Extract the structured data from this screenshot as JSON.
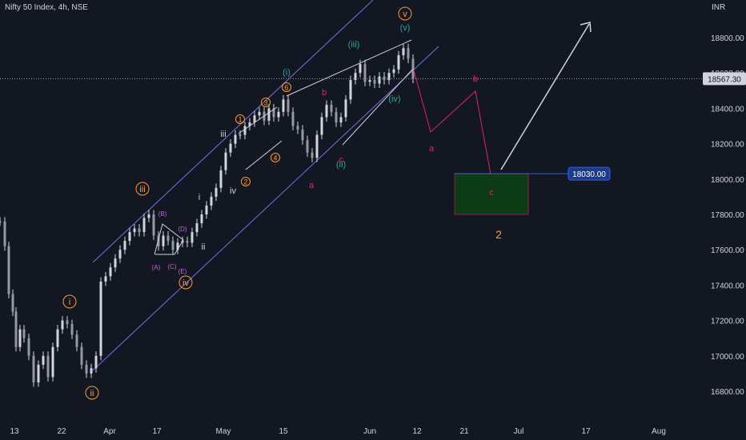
{
  "header": {
    "symbol": "Nifty 50 Index, 4h, NSE",
    "currency": "INR"
  },
  "chart_data": {
    "type": "candlestick",
    "title": "Nifty 50 Index, 4h, NSE",
    "ylim": [
      16700,
      19100
    ],
    "y_ticks": [
      16800,
      17000,
      17200,
      17400,
      17600,
      17800,
      18000,
      18200,
      18400,
      18600,
      18800
    ],
    "x_ticks": [
      "13",
      "22",
      "Apr",
      "17",
      "May",
      "15",
      "Jun",
      "12",
      "21",
      "Jul",
      "17",
      "Aug"
    ],
    "last_price": "18567.30",
    "target_level": "18030.00",
    "colors": {
      "up": "#d1d4dc",
      "down": "#d1d4dc",
      "channel": "#7e6ee6",
      "projection": "#e0245e",
      "box_fill": "#0d3b16",
      "box_border": "#e0245e",
      "target": "#2962ff",
      "arrow": "#d1d4dc",
      "orange": "#ff9b2d",
      "teal": "#26a69a",
      "magenta": "#c764d6",
      "white": "#d1d4dc"
    },
    "wave_labels": [
      {
        "text": "i",
        "style": "orange-circle"
      },
      {
        "text": "ii",
        "style": "orange-circle"
      },
      {
        "text": "iii",
        "style": "orange-circle"
      },
      {
        "text": "iv",
        "style": "orange-circle"
      },
      {
        "text": "v",
        "style": "orange-circle"
      },
      {
        "text": "(i)",
        "style": "teal"
      },
      {
        "text": "(ii)",
        "style": "teal"
      },
      {
        "text": "(iii)",
        "style": "teal"
      },
      {
        "text": "(iv)",
        "style": "teal"
      },
      {
        "text": "(v)",
        "style": "teal"
      },
      {
        "text": "i",
        "style": "white"
      },
      {
        "text": "ii",
        "style": "white"
      },
      {
        "text": "iii",
        "style": "white"
      },
      {
        "text": "iv",
        "style": "white"
      },
      {
        "text": "1",
        "style": "orange-small"
      },
      {
        "text": "2",
        "style": "orange-small"
      },
      {
        "text": "3",
        "style": "orange-small"
      },
      {
        "text": "4",
        "style": "orange-small"
      },
      {
        "text": "6",
        "style": "orange-small"
      },
      {
        "text": "(A)",
        "style": "magenta"
      },
      {
        "text": "(B)",
        "style": "magenta"
      },
      {
        "text": "(C)",
        "style": "magenta"
      },
      {
        "text": "(D)",
        "style": "magenta"
      },
      {
        "text": "(E)",
        "style": "magenta"
      },
      {
        "text": "a",
        "style": "red"
      },
      {
        "text": "b",
        "style": "red"
      },
      {
        "text": "c",
        "style": "red"
      },
      {
        "text": "a",
        "style": "red"
      },
      {
        "text": "b",
        "style": "red"
      },
      {
        "text": "c",
        "style": "red"
      },
      {
        "text": "2",
        "style": "orange-big"
      }
    ]
  }
}
